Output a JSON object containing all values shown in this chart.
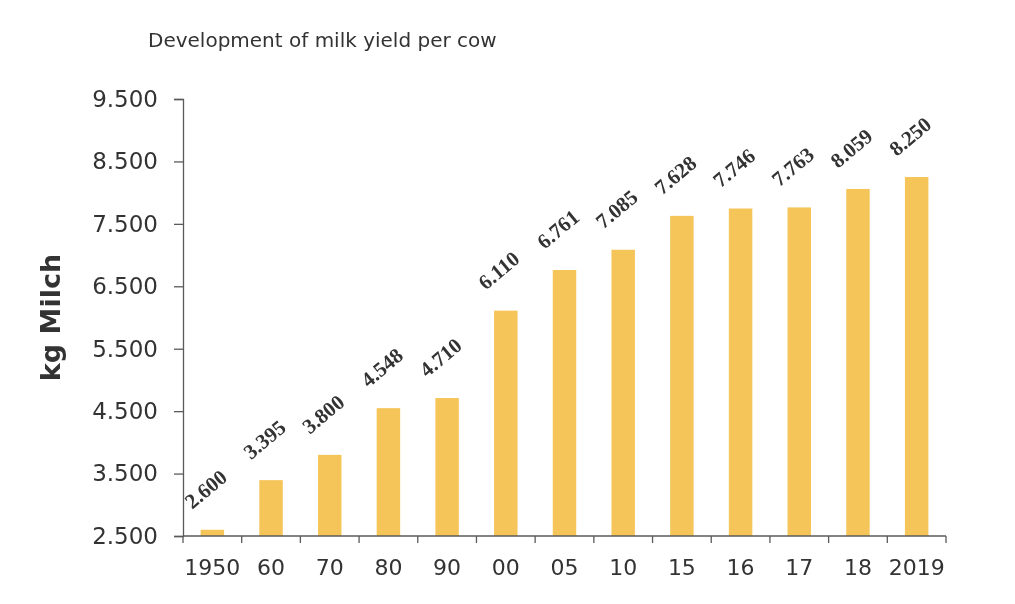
{
  "chart_data": {
    "type": "bar",
    "title": "Development of milk yield per cow",
    "ylabel": "kg Milch",
    "categories": [
      "1950",
      "60",
      "70",
      "80",
      "90",
      "00",
      "05",
      "10",
      "15",
      "16",
      "17",
      "18",
      "2019"
    ],
    "values": [
      2600,
      3395,
      3800,
      4548,
      4710,
      6110,
      6761,
      7085,
      7628,
      7746,
      7763,
      8059,
      8250
    ],
    "value_labels": [
      "2.600",
      "3.395",
      "3.800",
      "4.548",
      "4.710",
      "6.110",
      "6.761",
      "7.085",
      "7.628",
      "7.746",
      "7.763",
      "8.059",
      "8.250"
    ],
    "color": "#f5c55a",
    "ylim": [
      2500,
      9500
    ],
    "yticks": [
      {
        "value": 2500,
        "label": "2.500"
      },
      {
        "value": 3500,
        "label": "3.500"
      },
      {
        "value": 4500,
        "label": "4.500"
      },
      {
        "value": 5500,
        "label": "5.500"
      },
      {
        "value": 6500,
        "label": "6.500"
      },
      {
        "value": 7500,
        "label": "7.500"
      },
      {
        "value": 8500,
        "label": "8.500"
      },
      {
        "value": 9500,
        "label": "9.500"
      }
    ],
    "grid": false
  }
}
